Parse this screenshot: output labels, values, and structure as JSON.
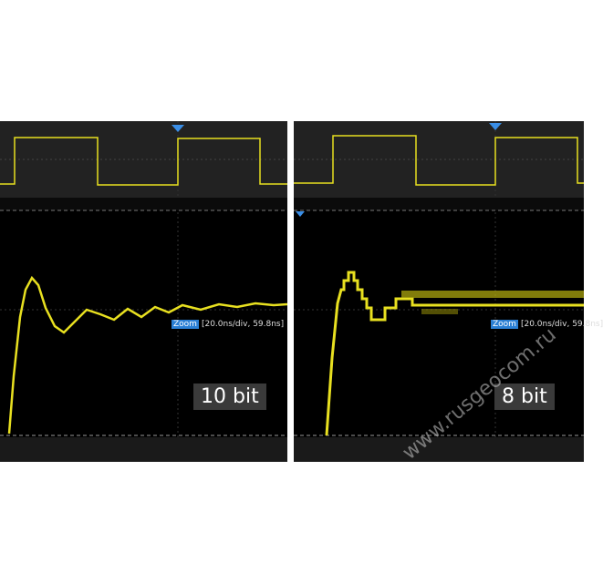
{
  "panels": [
    {
      "zoom_tag": "Zoom",
      "zoom_info": "[20.0ns/div, 59.8ns]",
      "label": "10 bit"
    },
    {
      "zoom_tag": "Zoom",
      "zoom_info": "[20.0ns/div, 59.8ns]",
      "label": "8 bit"
    }
  ],
  "watermark": "www.rusgeocom.ru",
  "colors": {
    "trace": "#e8e020",
    "marker": "#3a8ee6",
    "overview_bg": "#222222"
  }
}
